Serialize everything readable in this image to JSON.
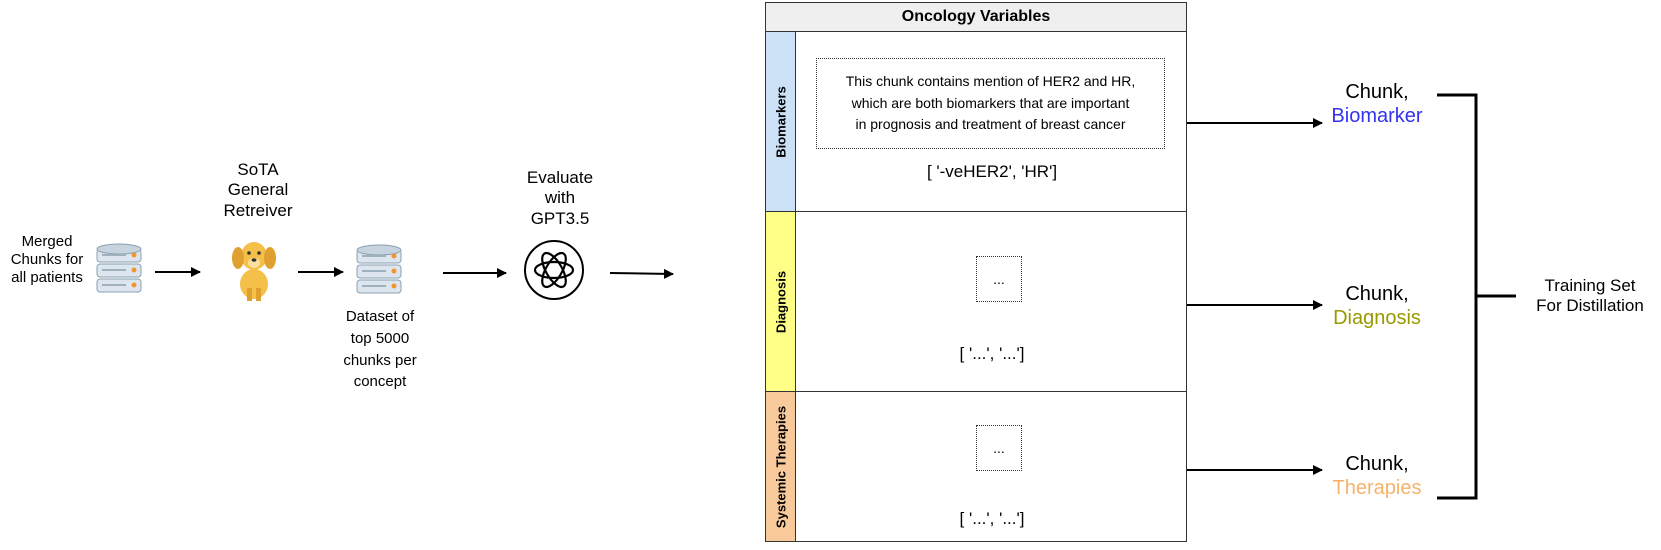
{
  "pipeline": {
    "source_label": "Merged\nChunks for\nall patients",
    "retriever_label": "SoTA\nGeneral\nRetreiver",
    "dataset_label": "Dataset of\ntop 5000\nchunks per\nconcept",
    "evaluate_label": "Evaluate\nwith\nGPT3.5"
  },
  "panel": {
    "title": "Oncology Variables",
    "rows": [
      {
        "label": "Biomarkers",
        "color": "#cce0f6",
        "explanation": "This chunk contains mention of HER2 and HR,\nwhich are both biomarkers that are important\nin prognosis and treatment of breast cancer",
        "list": "[ '-veHER2', 'HR']"
      },
      {
        "label": "Diagnosis",
        "color": "#ffff88",
        "explanation": "...",
        "list": "[ '...', '...']"
      },
      {
        "label": "Systemic Therapies",
        "color": "#f8c99a",
        "explanation": "...",
        "list": "[ '...', '...']"
      }
    ]
  },
  "outputs": [
    {
      "chunk": "Chunk,",
      "concept": "Biomarker",
      "color": "#3333ee"
    },
    {
      "chunk": "Chunk,",
      "concept": "Diagnosis",
      "color": "#999900"
    },
    {
      "chunk": "Chunk,",
      "concept": "Therapies",
      "color": "#f6b26b"
    }
  ],
  "result_label": "Training Set\nFor Distillation",
  "icons": {
    "database": "database-icon",
    "dog": "dog-retriever-icon",
    "openai": "openai-logo-icon"
  }
}
